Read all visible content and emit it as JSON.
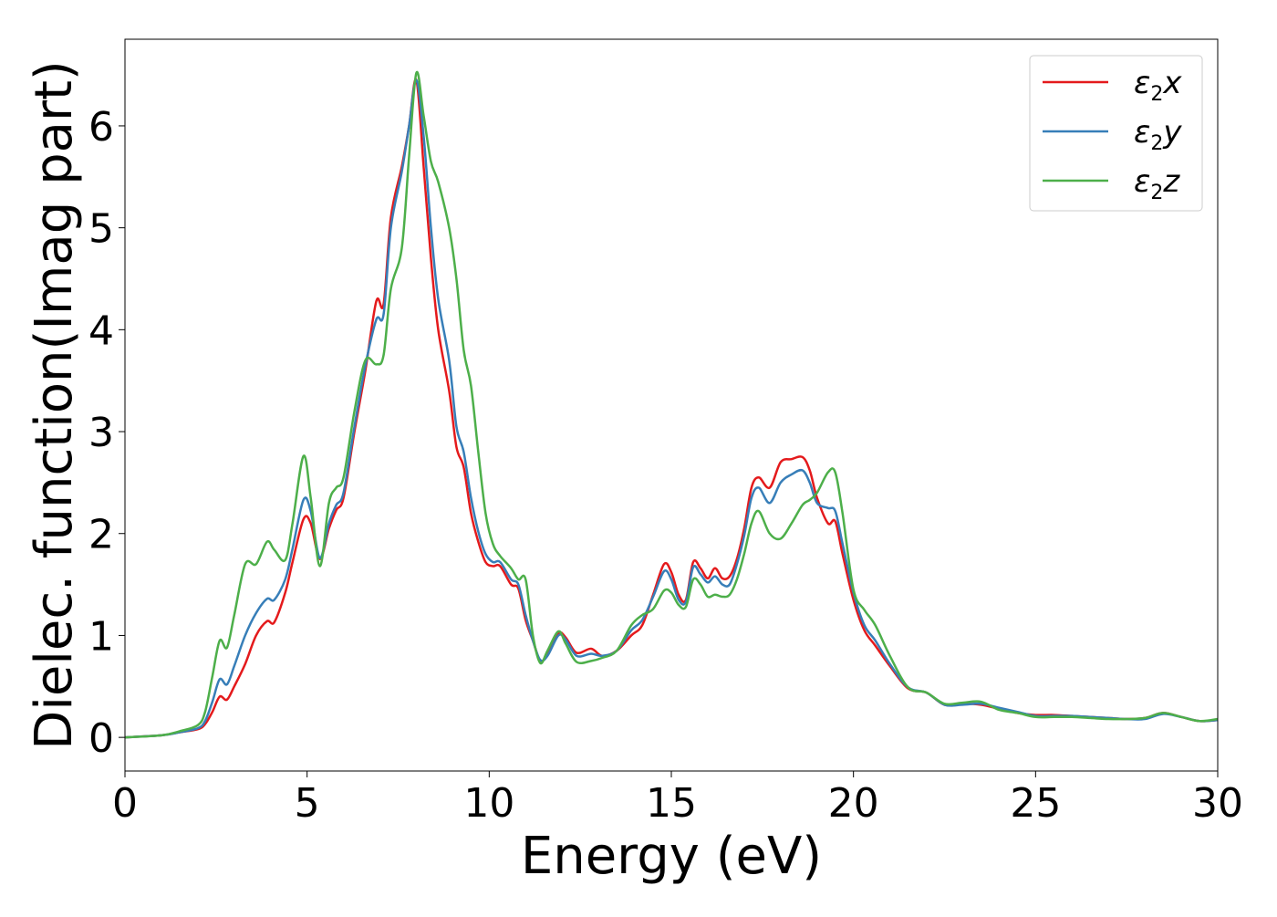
{
  "chart_data": {
    "type": "line",
    "title": "",
    "xlabel": "Energy (eV)",
    "ylabel": "Dielec. function(Imag part)",
    "xlim": [
      0,
      30
    ],
    "ylim": [
      -0.33,
      6.85
    ],
    "xticks": [
      0,
      5,
      10,
      15,
      20,
      25,
      30
    ],
    "xtick_labels": [
      "0",
      "5",
      "10",
      "15",
      "20",
      "25",
      "30"
    ],
    "yticks": [
      0,
      1,
      2,
      3,
      4,
      5,
      6
    ],
    "ytick_labels": [
      "0",
      "1",
      "2",
      "3",
      "4",
      "5",
      "6"
    ],
    "grid": false,
    "legend_position": "top-right",
    "series": [
      {
        "name": "ε₂x",
        "legend_base": "ε",
        "legend_sub": "2",
        "legend_tail": "x",
        "color": "#e41a1c",
        "x": [
          0,
          1,
          1.5,
          2.0,
          2.2,
          2.4,
          2.6,
          2.8,
          3.0,
          3.3,
          3.6,
          3.9,
          4.1,
          4.4,
          4.6,
          4.9,
          5.1,
          5.35,
          5.6,
          5.8,
          6.0,
          6.3,
          6.6,
          6.9,
          7.1,
          7.3,
          7.6,
          7.8,
          8.0,
          8.2,
          8.4,
          8.6,
          8.9,
          9.1,
          9.3,
          9.5,
          9.7,
          9.9,
          10.1,
          10.3,
          10.6,
          10.8,
          11.0,
          11.2,
          11.4,
          11.6,
          11.9,
          12.1,
          12.4,
          12.8,
          13.1,
          13.5,
          13.9,
          14.2,
          14.5,
          14.8,
          15.0,
          15.2,
          15.4,
          15.6,
          15.8,
          16.0,
          16.2,
          16.4,
          16.6,
          16.8,
          17.0,
          17.2,
          17.4,
          17.7,
          18.0,
          18.3,
          18.6,
          18.8,
          19.0,
          19.3,
          19.5,
          19.7,
          20.0,
          20.3,
          20.6,
          21.0,
          21.5,
          22.0,
          22.5,
          23.0,
          23.5,
          24.0,
          24.5,
          25.0,
          25.5,
          26.0,
          26.5,
          27.0,
          27.5,
          28.0,
          28.5,
          29.0,
          29.5,
          30.0
        ],
        "y": [
          0,
          0.02,
          0.05,
          0.08,
          0.13,
          0.25,
          0.4,
          0.37,
          0.5,
          0.72,
          1.0,
          1.14,
          1.13,
          1.42,
          1.72,
          2.14,
          2.1,
          1.75,
          2.05,
          2.23,
          2.35,
          3.0,
          3.6,
          4.28,
          4.25,
          5.1,
          5.6,
          6.0,
          6.45,
          5.6,
          4.7,
          4.0,
          3.4,
          2.85,
          2.65,
          2.2,
          1.92,
          1.72,
          1.68,
          1.68,
          1.5,
          1.46,
          1.15,
          0.95,
          0.75,
          0.82,
          1.02,
          0.98,
          0.83,
          0.87,
          0.8,
          0.85,
          1.0,
          1.1,
          1.4,
          1.7,
          1.62,
          1.4,
          1.35,
          1.72,
          1.66,
          1.56,
          1.66,
          1.56,
          1.58,
          1.75,
          2.05,
          2.45,
          2.55,
          2.45,
          2.7,
          2.73,
          2.75,
          2.62,
          2.35,
          2.1,
          2.12,
          1.8,
          1.35,
          1.05,
          0.9,
          0.7,
          0.48,
          0.44,
          0.32,
          0.33,
          0.32,
          0.28,
          0.24,
          0.22,
          0.22,
          0.21,
          0.2,
          0.19,
          0.18,
          0.19,
          0.24,
          0.2,
          0.16,
          0.17
        ]
      },
      {
        "name": "ε₂y",
        "legend_base": "ε",
        "legend_sub": "2",
        "legend_tail": "y",
        "color": "#377eb8",
        "x": [
          0,
          1,
          1.5,
          2.0,
          2.2,
          2.4,
          2.6,
          2.8,
          3.0,
          3.3,
          3.6,
          3.9,
          4.1,
          4.4,
          4.6,
          4.9,
          5.1,
          5.35,
          5.6,
          5.8,
          6.0,
          6.3,
          6.6,
          6.9,
          7.1,
          7.3,
          7.6,
          7.8,
          8.0,
          8.2,
          8.4,
          8.6,
          8.9,
          9.1,
          9.3,
          9.5,
          9.7,
          9.9,
          10.1,
          10.3,
          10.6,
          10.8,
          11.0,
          11.2,
          11.4,
          11.6,
          11.9,
          12.1,
          12.4,
          12.8,
          13.1,
          13.5,
          13.9,
          14.2,
          14.5,
          14.8,
          15.0,
          15.2,
          15.4,
          15.6,
          15.8,
          16.0,
          16.2,
          16.4,
          16.6,
          16.8,
          17.0,
          17.2,
          17.4,
          17.7,
          18.0,
          18.3,
          18.6,
          18.8,
          19.0,
          19.3,
          19.5,
          19.7,
          20.0,
          20.3,
          20.6,
          21.0,
          21.5,
          22.0,
          22.5,
          23.0,
          23.5,
          24.0,
          24.5,
          25.0,
          25.5,
          26.0,
          26.5,
          27.0,
          27.5,
          28.0,
          28.5,
          29.0,
          29.5,
          30.0
        ],
        "y": [
          0,
          0.02,
          0.05,
          0.09,
          0.16,
          0.35,
          0.57,
          0.52,
          0.7,
          1.0,
          1.22,
          1.36,
          1.35,
          1.55,
          1.85,
          2.33,
          2.22,
          1.76,
          2.1,
          2.28,
          2.4,
          3.05,
          3.65,
          4.1,
          4.15,
          5.0,
          5.55,
          6.0,
          6.45,
          5.9,
          5.0,
          4.3,
          3.7,
          3.05,
          2.8,
          2.35,
          2.02,
          1.8,
          1.72,
          1.72,
          1.55,
          1.5,
          1.2,
          0.95,
          0.76,
          0.8,
          1.0,
          0.96,
          0.8,
          0.82,
          0.8,
          0.85,
          1.05,
          1.15,
          1.38,
          1.63,
          1.55,
          1.35,
          1.33,
          1.67,
          1.6,
          1.52,
          1.58,
          1.5,
          1.5,
          1.7,
          1.98,
          2.35,
          2.45,
          2.3,
          2.5,
          2.58,
          2.62,
          2.5,
          2.3,
          2.25,
          2.22,
          1.9,
          1.42,
          1.1,
          0.95,
          0.72,
          0.49,
          0.44,
          0.32,
          0.32,
          0.33,
          0.29,
          0.25,
          0.21,
          0.21,
          0.21,
          0.2,
          0.19,
          0.18,
          0.18,
          0.23,
          0.2,
          0.16,
          0.17
        ]
      },
      {
        "name": "ε₂z",
        "legend_base": "ε",
        "legend_sub": "2",
        "legend_tail": "z",
        "color": "#4daf4a",
        "x": [
          0,
          1,
          1.5,
          2.0,
          2.2,
          2.4,
          2.6,
          2.8,
          3.0,
          3.3,
          3.6,
          3.9,
          4.1,
          4.4,
          4.6,
          4.9,
          5.1,
          5.35,
          5.6,
          5.8,
          6.0,
          6.3,
          6.6,
          6.9,
          7.1,
          7.3,
          7.6,
          7.8,
          8.0,
          8.2,
          8.4,
          8.6,
          8.9,
          9.1,
          9.3,
          9.5,
          9.7,
          9.9,
          10.1,
          10.3,
          10.6,
          10.8,
          11.0,
          11.2,
          11.4,
          11.6,
          11.9,
          12.1,
          12.4,
          12.8,
          13.1,
          13.5,
          13.9,
          14.2,
          14.5,
          14.8,
          15.0,
          15.2,
          15.4,
          15.6,
          15.8,
          16.0,
          16.2,
          16.4,
          16.6,
          16.8,
          17.0,
          17.2,
          17.4,
          17.7,
          18.0,
          18.3,
          18.6,
          18.8,
          19.0,
          19.3,
          19.5,
          19.7,
          20.0,
          20.3,
          20.6,
          21.0,
          21.5,
          22.0,
          22.5,
          23.0,
          23.5,
          24.0,
          24.5,
          25.0,
          25.5,
          26.0,
          26.5,
          27.0,
          27.5,
          28.0,
          28.5,
          29.0,
          29.5,
          30.0
        ],
        "y": [
          0,
          0.02,
          0.06,
          0.12,
          0.25,
          0.6,
          0.95,
          0.88,
          1.2,
          1.7,
          1.7,
          1.92,
          1.84,
          1.74,
          2.1,
          2.76,
          2.35,
          1.68,
          2.3,
          2.45,
          2.55,
          3.2,
          3.7,
          3.66,
          3.75,
          4.4,
          4.8,
          5.7,
          6.52,
          6.1,
          5.65,
          5.45,
          5.0,
          4.5,
          3.8,
          3.45,
          2.8,
          2.2,
          1.9,
          1.78,
          1.66,
          1.55,
          1.55,
          1.0,
          0.73,
          0.85,
          1.04,
          0.92,
          0.74,
          0.75,
          0.78,
          0.85,
          1.1,
          1.2,
          1.26,
          1.44,
          1.42,
          1.3,
          1.28,
          1.55,
          1.5,
          1.38,
          1.4,
          1.38,
          1.4,
          1.55,
          1.8,
          2.1,
          2.22,
          2.0,
          1.95,
          2.1,
          2.28,
          2.33,
          2.4,
          2.6,
          2.6,
          2.2,
          1.45,
          1.25,
          1.1,
          0.8,
          0.49,
          0.44,
          0.33,
          0.34,
          0.35,
          0.27,
          0.24,
          0.2,
          0.2,
          0.2,
          0.19,
          0.18,
          0.18,
          0.19,
          0.24,
          0.2,
          0.16,
          0.18
        ]
      }
    ]
  }
}
